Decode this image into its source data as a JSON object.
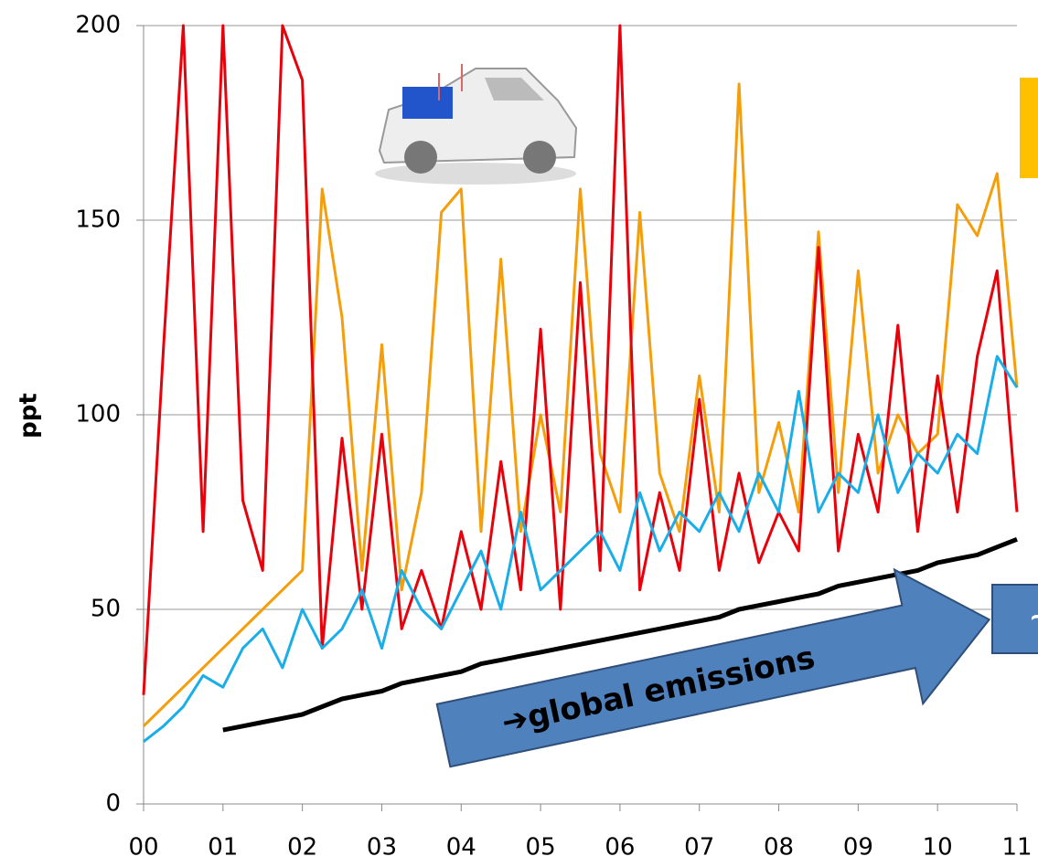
{
  "chart_data": {
    "type": "line",
    "y_label": "ppt",
    "annotations": [
      "➔global emissions",
      "~"
    ],
    "x": [
      0,
      0.25,
      0.5,
      0.75,
      1,
      1.25,
      1.5,
      1.75,
      2,
      2.25,
      2.5,
      2.75,
      3,
      3.25,
      3.5,
      3.75,
      4,
      4.25,
      4.5,
      4.75,
      5,
      5.25,
      5.5,
      5.75,
      6,
      6.25,
      6.5,
      6.75,
      7,
      7.25,
      7.5,
      7.75,
      8,
      8.25,
      8.5,
      8.75,
      9,
      9.25,
      9.5,
      9.75,
      10,
      10.25,
      10.5,
      10.75,
      11
    ],
    "xlim": [
      0,
      11
    ],
    "xticks": [
      {
        "value": 0,
        "label": "00"
      },
      {
        "value": 1,
        "label": "01"
      },
      {
        "value": 2,
        "label": "02"
      },
      {
        "value": 3,
        "label": "03"
      },
      {
        "value": 4,
        "label": "04"
      },
      {
        "value": 5,
        "label": "05"
      },
      {
        "value": 6,
        "label": "06"
      },
      {
        "value": 7,
        "label": "07"
      },
      {
        "value": 8,
        "label": "08"
      },
      {
        "value": 9,
        "label": "09"
      },
      {
        "value": 10,
        "label": "10"
      },
      {
        "value": 11,
        "label": "11"
      }
    ],
    "ylim": [
      0,
      200
    ],
    "yticks": [
      0,
      50,
      100,
      150,
      200
    ],
    "grid": true,
    "series": [
      {
        "color": "#f59e0b",
        "values": [
          20,
          25,
          30,
          35,
          40,
          45,
          50,
          55,
          60,
          158,
          125,
          60,
          118,
          55,
          80,
          152,
          158,
          70,
          140,
          70,
          100,
          75,
          158,
          90,
          75,
          152,
          85,
          70,
          110,
          75,
          185,
          80,
          98,
          75,
          147,
          80,
          137,
          85,
          100,
          90,
          95,
          154,
          146,
          162,
          107
        ]
      },
      {
        "color": "#e8000b",
        "values": [
          28,
          117,
          200,
          70,
          200,
          78,
          60,
          200,
          186,
          40,
          94,
          50,
          95,
          45,
          60,
          45,
          70,
          50,
          88,
          55,
          122,
          50,
          134,
          60,
          200,
          55,
          80,
          60,
          104,
          60,
          85,
          62,
          75,
          65,
          143,
          65,
          95,
          75,
          123,
          70,
          110,
          75,
          115,
          137,
          75
        ]
      },
      {
        "color": "#19aee8",
        "values": [
          16,
          20,
          25,
          33,
          30,
          40,
          45,
          35,
          50,
          40,
          45,
          55,
          40,
          60,
          50,
          45,
          55,
          65,
          50,
          75,
          55,
          60,
          65,
          70,
          60,
          80,
          65,
          75,
          70,
          80,
          70,
          85,
          75,
          106,
          75,
          85,
          80,
          100,
          80,
          90,
          85,
          95,
          90,
          115,
          107
        ]
      },
      {
        "color": "#000000",
        "values": [
          null,
          null,
          null,
          null,
          19,
          20,
          21,
          22,
          23,
          25,
          27,
          28,
          29,
          31,
          32,
          33,
          34,
          36,
          37,
          38,
          39,
          40,
          41,
          42,
          43,
          44,
          45,
          46,
          47,
          48,
          50,
          51,
          52,
          53,
          54,
          56,
          57,
          58,
          59,
          60,
          62,
          63,
          64,
          66,
          68
        ]
      }
    ]
  }
}
